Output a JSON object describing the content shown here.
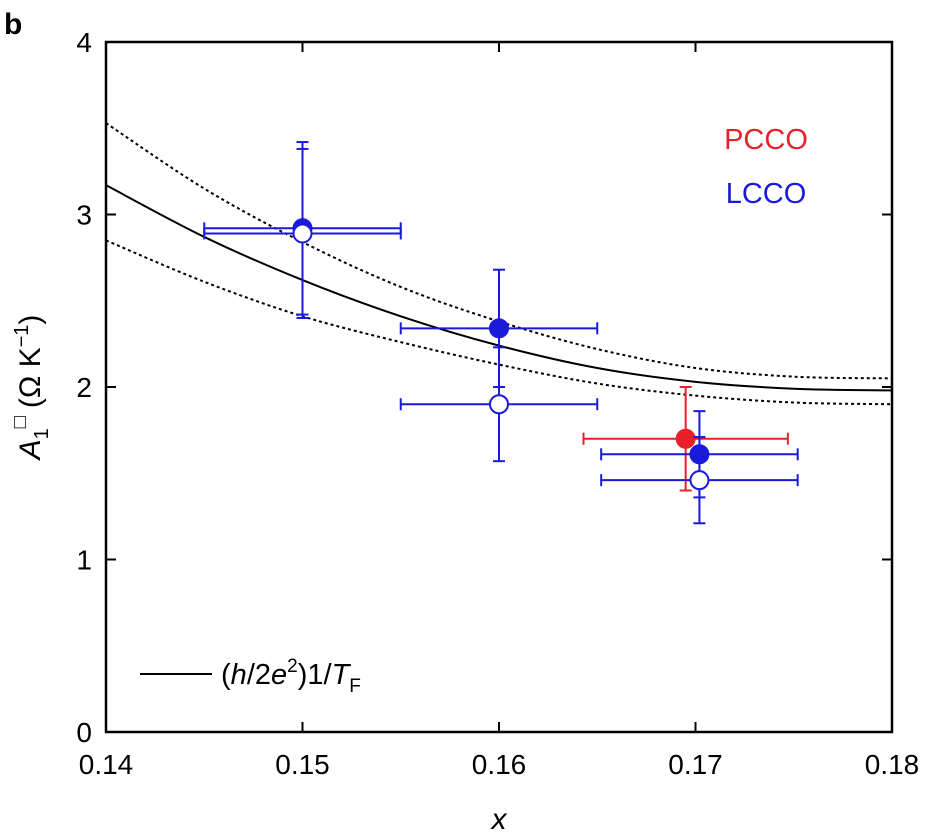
{
  "chart_data": {
    "type": "scatter",
    "panel_label": "b",
    "xlabel": "x",
    "ylabel": {
      "symbol": "A",
      "subscript": "1",
      "superscript": "□",
      "units": "(Ω K",
      "units_exp": "−1",
      "units_close": ")"
    },
    "xlim": [
      0.14,
      0.18
    ],
    "ylim": [
      0,
      4
    ],
    "x_ticks": [
      0.14,
      0.15,
      0.16,
      0.17,
      0.18
    ],
    "x_tick_labels": [
      "0.14",
      "0.15",
      "0.16",
      "0.17",
      "0.18"
    ],
    "y_ticks": [
      0,
      1,
      2,
      3,
      4
    ],
    "y_tick_labels": [
      "0",
      "1",
      "2",
      "3",
      "4"
    ],
    "grid": false,
    "legend": {
      "placement": "top-right",
      "entries": [
        {
          "label": "PCCO",
          "color": "#e8202a"
        },
        {
          "label": "LCCO",
          "color": "#1a1adb"
        }
      ]
    },
    "line_legend": {
      "placement": "bottom-left",
      "open": "(",
      "h": "h",
      "slash1": "/2",
      "e": "e",
      "e_exp": "2",
      "mid": ")1/",
      "T": "T",
      "T_sub": "F"
    },
    "curves": [
      {
        "style": "solid",
        "points": [
          [
            0.14,
            3.17
          ],
          [
            0.145,
            2.87
          ],
          [
            0.15,
            2.62
          ],
          [
            0.155,
            2.41
          ],
          [
            0.16,
            2.24
          ],
          [
            0.165,
            2.11
          ],
          [
            0.17,
            2.03
          ],
          [
            0.175,
            1.99
          ],
          [
            0.18,
            1.98
          ]
        ]
      },
      {
        "style": "dotted",
        "points": [
          [
            0.14,
            3.53
          ],
          [
            0.145,
            3.15
          ],
          [
            0.15,
            2.84
          ],
          [
            0.155,
            2.58
          ],
          [
            0.16,
            2.38
          ],
          [
            0.165,
            2.22
          ],
          [
            0.17,
            2.11
          ],
          [
            0.175,
            2.06
          ],
          [
            0.18,
            2.05
          ]
        ]
      },
      {
        "style": "dotted",
        "points": [
          [
            0.14,
            2.85
          ],
          [
            0.145,
            2.61
          ],
          [
            0.15,
            2.41
          ],
          [
            0.155,
            2.26
          ],
          [
            0.16,
            2.13
          ],
          [
            0.165,
            2.02
          ],
          [
            0.17,
            1.95
          ],
          [
            0.175,
            1.91
          ],
          [
            0.18,
            1.9
          ]
        ]
      }
    ],
    "series": [
      {
        "name": "PCCO",
        "color": "#e8202a",
        "points": [
          {
            "x": 0.1695,
            "y": 1.7,
            "xerr": 0.0052,
            "yerr": 0.3,
            "filled": true
          }
        ]
      },
      {
        "name": "LCCO",
        "color": "#1a1adb",
        "points": [
          {
            "x": 0.15,
            "y": 2.92,
            "xerr": 0.005,
            "yerr": 0.5,
            "filled": true
          },
          {
            "x": 0.15,
            "y": 2.89,
            "xerr": 0.005,
            "yerr": 0.49,
            "filled": false
          },
          {
            "x": 0.16,
            "y": 2.34,
            "xerr": 0.005,
            "yerr": 0.34,
            "filled": true
          },
          {
            "x": 0.16,
            "y": 1.9,
            "xerr": 0.005,
            "yerr": 0.33,
            "filled": false
          },
          {
            "x": 0.1702,
            "y": 1.61,
            "xerr": 0.005,
            "yerr": 0.25,
            "filled": true
          },
          {
            "x": 0.1702,
            "y": 1.46,
            "xerr": 0.005,
            "yerr": 0.25,
            "filled": false
          }
        ]
      }
    ]
  }
}
